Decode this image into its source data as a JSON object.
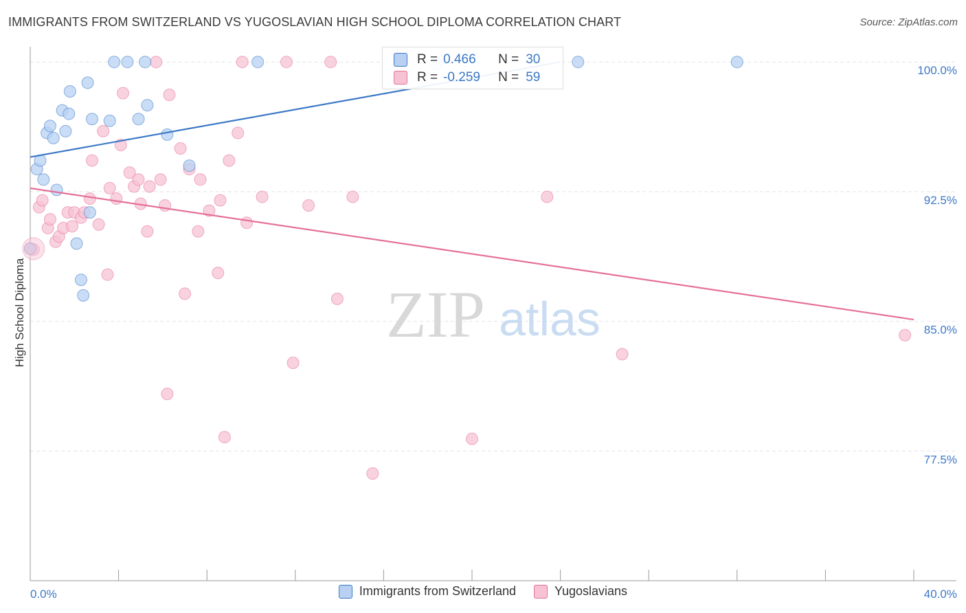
{
  "title": "IMMIGRANTS FROM SWITZERLAND VS YUGOSLAVIAN HIGH SCHOOL DIPLOMA CORRELATION CHART",
  "source": "Source: ZipAtlas.com",
  "watermark": {
    "zip": "ZIP",
    "atlas": "atlas"
  },
  "colors": {
    "blue": "#3b78c6",
    "blue_fill": "#b8d1f3",
    "pink": "#e5709a",
    "pink_fill": "#f7c3d4",
    "grid": "#e4e4e4",
    "axis_text": "#3b78c6"
  },
  "stats": {
    "blue": {
      "r_label": "R =",
      "r_value": "0.466",
      "n_label": "N =",
      "n_value": "30"
    },
    "pink": {
      "r_label": "R =",
      "r_value": "-0.259",
      "n_label": "N =",
      "n_value": "59"
    }
  },
  "chart_data": {
    "type": "scatter",
    "title": "IMMIGRANTS FROM SWITZERLAND VS YUGOSLAVIAN HIGH SCHOOL DIPLOMA CORRELATION CHART",
    "xlabel": "",
    "ylabel": "High School Diploma",
    "xlim": [
      0,
      40
    ],
    "ylim": [
      70.0,
      101.2
    ],
    "x_tick_labels": [
      "0.0%",
      "40.0%"
    ],
    "y_ticks": [
      77.5,
      85.0,
      92.5,
      100.0
    ],
    "y_tick_labels": [
      "77.5%",
      "85.0%",
      "92.5%",
      "100.0%"
    ],
    "grid": true,
    "legend_position": "bottom",
    "series": [
      {
        "name": "Immigrants from Switzerland",
        "color": "#3b78c6",
        "trend": {
          "x": [
            0,
            24.0
          ],
          "y": [
            94.5,
            100.0
          ]
        },
        "points": [
          [
            0.0,
            89.2
          ],
          [
            0.3,
            93.8
          ],
          [
            0.45,
            94.3
          ],
          [
            0.6,
            93.2
          ],
          [
            0.75,
            95.9
          ],
          [
            0.9,
            96.3
          ],
          [
            1.05,
            95.6
          ],
          [
            1.2,
            92.6
          ],
          [
            1.45,
            97.2
          ],
          [
            1.6,
            96.0
          ],
          [
            1.75,
            97.0
          ],
          [
            1.8,
            98.3
          ],
          [
            2.1,
            89.5
          ],
          [
            2.3,
            87.4
          ],
          [
            2.4,
            86.5
          ],
          [
            2.6,
            98.8
          ],
          [
            2.7,
            91.3
          ],
          [
            2.8,
            96.7
          ],
          [
            3.6,
            96.6
          ],
          [
            3.8,
            100.0
          ],
          [
            4.4,
            100.0
          ],
          [
            4.9,
            96.7
          ],
          [
            5.2,
            100.0
          ],
          [
            5.3,
            97.5
          ],
          [
            6.2,
            95.8
          ],
          [
            7.2,
            94.0
          ],
          [
            10.3,
            100.0
          ],
          [
            18.4,
            99.9
          ],
          [
            24.8,
            100.0
          ],
          [
            32.0,
            100.0
          ]
        ]
      },
      {
        "name": "Yugoslavians",
        "color": "#e5709a",
        "trend": {
          "x": [
            0,
            40.0
          ],
          "y": [
            92.7,
            85.1
          ]
        },
        "points": [
          [
            0.0,
            89.2
          ],
          [
            0.4,
            91.6
          ],
          [
            0.55,
            92.0
          ],
          [
            0.8,
            90.4
          ],
          [
            0.9,
            90.9
          ],
          [
            1.15,
            89.6
          ],
          [
            1.3,
            89.9
          ],
          [
            1.5,
            90.4
          ],
          [
            1.7,
            91.3
          ],
          [
            1.9,
            90.5
          ],
          [
            2.0,
            91.3
          ],
          [
            2.3,
            91.0
          ],
          [
            2.45,
            91.3
          ],
          [
            2.7,
            92.1
          ],
          [
            2.8,
            94.3
          ],
          [
            3.1,
            90.6
          ],
          [
            3.3,
            96.0
          ],
          [
            3.5,
            87.7
          ],
          [
            3.6,
            92.7
          ],
          [
            3.9,
            92.1
          ],
          [
            4.1,
            95.2
          ],
          [
            4.2,
            98.2
          ],
          [
            4.5,
            93.6
          ],
          [
            4.7,
            92.8
          ],
          [
            4.9,
            93.2
          ],
          [
            5.0,
            91.8
          ],
          [
            5.3,
            90.2
          ],
          [
            5.4,
            92.8
          ],
          [
            5.7,
            100.0
          ],
          [
            5.9,
            93.2
          ],
          [
            6.1,
            91.7
          ],
          [
            6.2,
            80.8
          ],
          [
            6.3,
            98.1
          ],
          [
            6.8,
            95.0
          ],
          [
            7.0,
            86.6
          ],
          [
            7.2,
            93.8
          ],
          [
            7.6,
            90.2
          ],
          [
            7.7,
            93.2
          ],
          [
            8.1,
            91.4
          ],
          [
            8.5,
            87.8
          ],
          [
            8.6,
            92.0
          ],
          [
            8.8,
            78.3
          ],
          [
            9.0,
            94.3
          ],
          [
            9.4,
            95.9
          ],
          [
            9.6,
            100.0
          ],
          [
            9.8,
            90.7
          ],
          [
            10.5,
            92.2
          ],
          [
            11.6,
            100.0
          ],
          [
            11.9,
            82.6
          ],
          [
            12.6,
            91.7
          ],
          [
            13.6,
            100.0
          ],
          [
            13.9,
            86.3
          ],
          [
            14.6,
            92.2
          ],
          [
            15.5,
            76.2
          ],
          [
            20.0,
            78.2
          ],
          [
            23.4,
            92.2
          ],
          [
            26.8,
            83.1
          ],
          [
            39.6,
            84.2
          ],
          [
            0.15,
            89.15
          ]
        ]
      }
    ]
  }
}
